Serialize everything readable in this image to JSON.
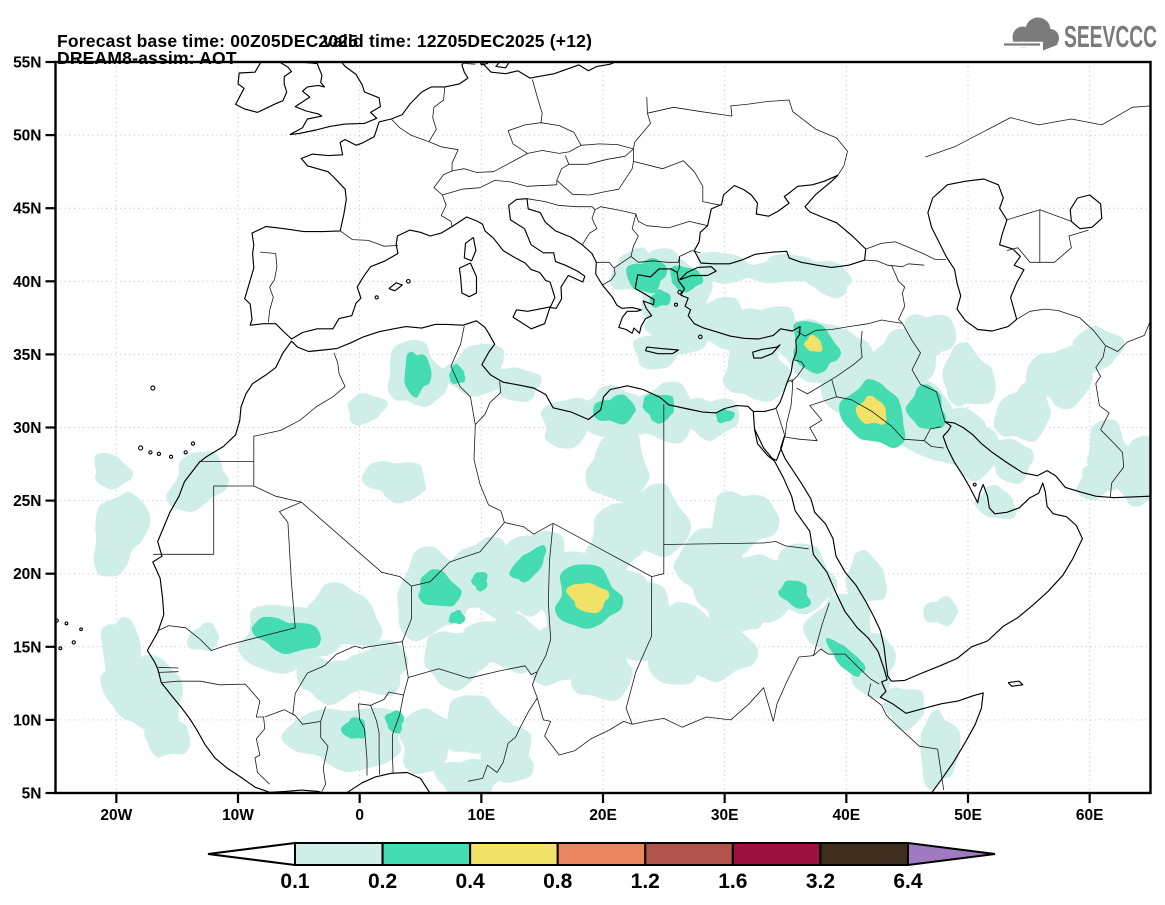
{
  "header": {
    "title_line1": "DREAM8-assim: AOT",
    "forecast_label": "Forecast base time: 00Z05DEC2025",
    "valid_label": "valid time: 12Z05DEC2025 (+12)",
    "logo_text": "SEEVCCC",
    "logo_color": "#7b7b7b"
  },
  "chart_data": {
    "type": "heatmap",
    "subtype": "filled-contour-forecast-map",
    "title": "DREAM8-assim: AOT",
    "model": "DREAM8-assim",
    "variable": "AOT",
    "forecast_base_time": "00Z05DEC2025",
    "valid_time": "12Z05DEC2025 (+12)",
    "map_extent": {
      "lon_min": -25,
      "lon_max": 65,
      "lat_min": 5,
      "lat_max": 55
    },
    "grid": {
      "lon_step": 10,
      "lat_step": 5,
      "style": "dotted"
    },
    "x_axis": {
      "ticks": [
        {
          "label": "20W",
          "lon": -20
        },
        {
          "label": "10W",
          "lon": -10
        },
        {
          "label": "0",
          "lon": 0
        },
        {
          "label": "10E",
          "lon": 10
        },
        {
          "label": "20E",
          "lon": 20
        },
        {
          "label": "30E",
          "lon": 30
        },
        {
          "label": "40E",
          "lon": 40
        },
        {
          "label": "50E",
          "lon": 50
        },
        {
          "label": "60E",
          "lon": 60
        }
      ]
    },
    "y_axis": {
      "ticks": [
        {
          "label": "55N",
          "lat": 55
        },
        {
          "label": "50N",
          "lat": 50
        },
        {
          "label": "45N",
          "lat": 45
        },
        {
          "label": "40N",
          "lat": 40
        },
        {
          "label": "35N",
          "lat": 35
        },
        {
          "label": "30N",
          "lat": 30
        },
        {
          "label": "25N",
          "lat": 25
        },
        {
          "label": "20N",
          "lat": 20
        },
        {
          "label": "15N",
          "lat": 15
        },
        {
          "label": "10N",
          "lat": 10
        },
        {
          "label": "5N",
          "lat": 5
        }
      ]
    },
    "colorbar": {
      "levels": [
        "0.1",
        "0.2",
        "0.4",
        "0.8",
        "1.2",
        "1.6",
        "3.2",
        "6.4"
      ],
      "colors": [
        "#ffffff",
        "#cfeee8",
        "#45dcb1",
        "#f2e368",
        "#ec8660",
        "#b2544c",
        "#9c1240",
        "#3f2d1e",
        "#a17bc2"
      ],
      "left_arrow_color": "#ffffff",
      "right_arrow_color": "#a17bc2",
      "legend_position": "bottom-center"
    },
    "plumes": {
      "note": "approximate AOT filled-contour regions; each blob = [lon_center, lat_center, rx_deg, ry_deg, rot_deg]",
      "bands": [
        {
          "range": "0.1-0.2",
          "color_index": 1,
          "blobs": [
            [
              -19.8,
              22.8,
              2.0,
              3.0,
              -15
            ],
            [
              -20.4,
              27.0,
              1.5,
              1.2,
              0
            ],
            [
              -13.3,
              26.3,
              2.5,
              1.8,
              20
            ],
            [
              -17.6,
              11.8,
              3.2,
              2.6,
              0
            ],
            [
              -19.6,
              14.6,
              1.6,
              2.4,
              15
            ],
            [
              -15.9,
              9.0,
              1.8,
              1.6,
              0
            ],
            [
              -12.8,
              15.6,
              1.3,
              0.9,
              0
            ],
            [
              3.0,
              26.4,
              2.5,
              1.4,
              0
            ],
            [
              0.5,
              31.3,
              1.6,
              1.0,
              0
            ],
            [
              4.6,
              33.6,
              2.3,
              2.3,
              0
            ],
            [
              9.6,
              33.9,
              2.5,
              1.7,
              0
            ],
            [
              12.8,
              33.0,
              2.0,
              1.2,
              0
            ],
            [
              -6.0,
              15.6,
              4.0,
              2.2,
              -5
            ],
            [
              -1.5,
              17.0,
              3.0,
              2.2,
              0
            ],
            [
              1.5,
              13.5,
              2.6,
              1.7,
              0
            ],
            [
              -2.5,
              12.8,
              2.6,
              1.6,
              0
            ],
            [
              6.0,
              18.6,
              3.2,
              2.8,
              0
            ],
            [
              10.5,
              19.6,
              3.0,
              2.8,
              0
            ],
            [
              14.0,
              20.2,
              3.0,
              2.6,
              0
            ],
            [
              18.6,
              18.3,
              4.4,
              3.3,
              0
            ],
            [
              21.0,
              22.3,
              2.4,
              2.2,
              0
            ],
            [
              22.5,
              16.8,
              3.4,
              3.0,
              0
            ],
            [
              26.0,
              15.3,
              3.0,
              2.6,
              0
            ],
            [
              29.3,
              14.8,
              2.8,
              2.2,
              0
            ],
            [
              31.0,
              18.0,
              2.4,
              2.2,
              0
            ],
            [
              12.0,
              15.3,
              3.0,
              2.0,
              0
            ],
            [
              8.0,
              14.3,
              3.0,
              1.8,
              0
            ],
            [
              16.5,
              14.3,
              3.0,
              2.0,
              0
            ],
            [
              20.0,
              13.4,
              2.6,
              2.0,
              0
            ],
            [
              -1.0,
              8.8,
              4.4,
              2.3,
              0
            ],
            [
              5.5,
              8.6,
              2.5,
              2.0,
              0
            ],
            [
              9.5,
              9.6,
              2.5,
              2.2,
              0
            ],
            [
              12.3,
              7.6,
              2.2,
              1.8,
              0
            ],
            [
              9.0,
              6.0,
              2.4,
              1.5,
              0
            ],
            [
              17.2,
              30.4,
              2.5,
              1.5,
              15
            ],
            [
              21.0,
              31.0,
              2.8,
              1.8,
              0
            ],
            [
              25.0,
              31.0,
              2.8,
              1.8,
              0
            ],
            [
              28.8,
              30.7,
              2.2,
              1.5,
              0
            ],
            [
              21.3,
              27.3,
              2.6,
              2.3,
              -35
            ],
            [
              24.0,
              23.5,
              2.8,
              2.6,
              0
            ],
            [
              29.0,
              20.5,
              3.0,
              2.6,
              0
            ],
            [
              33.0,
              19.0,
              3.0,
              2.6,
              0
            ],
            [
              36.5,
              19.6,
              2.6,
              2.2,
              0
            ],
            [
              39.6,
              16.4,
              2.5,
              2.3,
              0
            ],
            [
              42.0,
              13.8,
              2.2,
              2.0,
              0
            ],
            [
              31.5,
              23.6,
              2.5,
              2.2,
              0
            ],
            [
              41.6,
              19.6,
              1.8,
              1.6,
              0
            ],
            [
              47.8,
              17.4,
              1.3,
              1.0,
              0
            ],
            [
              44.8,
              10.9,
              1.8,
              1.3,
              0
            ],
            [
              47.6,
              8.0,
              1.5,
              2.7,
              0
            ],
            [
              32.6,
              34.0,
              2.8,
              2.1,
              0
            ],
            [
              37.5,
              35.3,
              3.2,
              2.3,
              -20
            ],
            [
              40.5,
              33.5,
              3.0,
              2.5,
              -25
            ],
            [
              43.2,
              31.5,
              3.4,
              3.0,
              -30
            ],
            [
              46.2,
              30.5,
              3.0,
              2.3,
              -20
            ],
            [
              48.6,
              29.4,
              2.6,
              2.0,
              0
            ],
            [
              50.6,
              28.5,
              2.3,
              1.8,
              0
            ],
            [
              44.6,
              34.6,
              2.6,
              2.0,
              0
            ],
            [
              29.6,
              37.1,
              2.8,
              1.6,
              0
            ],
            [
              33.0,
              36.9,
              2.6,
              1.5,
              0
            ],
            [
              25.6,
              39.6,
              3.3,
              2.3,
              0
            ],
            [
              22.6,
              40.7,
              1.8,
              1.5,
              0
            ],
            [
              26.2,
              36.9,
              2.5,
              1.7,
              0
            ],
            [
              24.6,
              35.3,
              2.0,
              1.3,
              0
            ],
            [
              30.0,
              40.9,
              2.6,
              1.0,
              0
            ],
            [
              34.8,
              40.8,
              2.8,
              1.0,
              0
            ],
            [
              38.3,
              40.3,
              2.3,
              1.1,
              -10
            ],
            [
              46.6,
              36.1,
              2.2,
              1.8,
              0
            ],
            [
              50.0,
              33.4,
              2.2,
              2.0,
              0
            ],
            [
              54.6,
              31.0,
              2.2,
              2.0,
              0
            ],
            [
              57.6,
              33.5,
              2.7,
              2.0,
              20
            ],
            [
              60.5,
              35.3,
              2.0,
              1.6,
              0
            ],
            [
              61.6,
              28.4,
              1.8,
              2.0,
              0
            ],
            [
              64.0,
              27.0,
              1.8,
              2.4,
              0
            ],
            [
              53.5,
              27.8,
              1.8,
              1.5,
              0
            ],
            [
              60.6,
              26.3,
              1.6,
              1.2,
              0
            ],
            [
              52.3,
              24.8,
              1.6,
              1.1,
              0
            ]
          ]
        },
        {
          "range": "0.2-0.4",
          "color_index": 2,
          "blobs": [
            [
              -6.0,
              15.8,
              2.6,
              1.2,
              -8
            ],
            [
              6.5,
              18.9,
              1.9,
              1.1,
              -15
            ],
            [
              8.0,
              17.0,
              0.6,
              0.5,
              0
            ],
            [
              9.9,
              19.5,
              0.7,
              0.6,
              0
            ],
            [
              13.9,
              20.6,
              1.5,
              0.9,
              35
            ],
            [
              18.7,
              18.4,
              2.8,
              2.0,
              0
            ],
            [
              -0.4,
              9.4,
              0.9,
              0.8,
              0
            ],
            [
              2.9,
              9.9,
              0.8,
              0.7,
              0
            ],
            [
              4.7,
              33.7,
              1.0,
              1.6,
              0
            ],
            [
              8.0,
              33.6,
              0.7,
              0.6,
              0
            ],
            [
              21.0,
              31.2,
              1.6,
              1.0,
              0
            ],
            [
              24.6,
              31.4,
              1.4,
              0.9,
              0
            ],
            [
              30.0,
              30.8,
              0.7,
              0.5,
              0
            ],
            [
              35.8,
              18.6,
              1.4,
              0.8,
              -20
            ],
            [
              40.0,
              14.2,
              1.7,
              0.7,
              -40
            ],
            [
              37.4,
              35.5,
              2.1,
              1.5,
              -25
            ],
            [
              42.3,
              30.9,
              2.5,
              2.2,
              -35
            ],
            [
              46.6,
              31.3,
              1.6,
              1.4,
              0
            ],
            [
              23.6,
              40.4,
              1.5,
              1.2,
              0
            ],
            [
              26.8,
              40.2,
              1.4,
              0.8,
              0
            ],
            [
              24.7,
              38.8,
              0.8,
              0.6,
              0
            ]
          ]
        },
        {
          "range": "0.4-0.8",
          "color_index": 3,
          "blobs": [
            [
              18.8,
              18.4,
              1.6,
              1.0,
              0
            ],
            [
              42.1,
              31.1,
              1.2,
              0.95,
              -30
            ],
            [
              37.3,
              35.7,
              0.7,
              0.55,
              0
            ]
          ]
        }
      ]
    }
  }
}
